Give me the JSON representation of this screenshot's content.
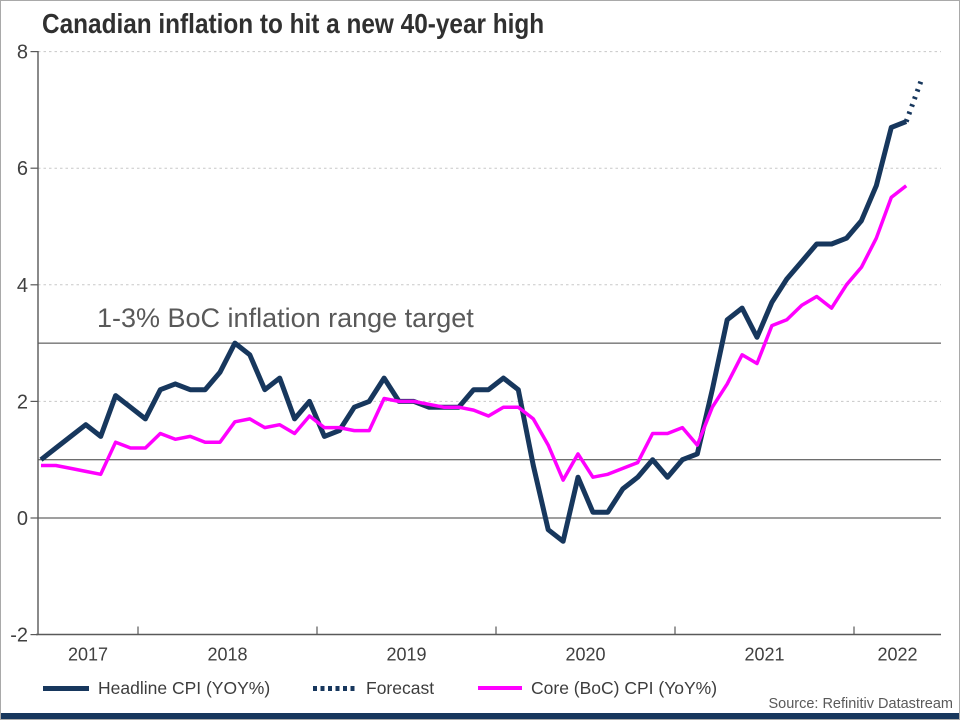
{
  "title": "Canadian inflation to hit a new 40-year high",
  "annotation": "1-3% BoC inflation range target",
  "source": "Source: Refinitiv Datastream",
  "colors": {
    "navy": "#17375d",
    "magenta": "#ff00ff",
    "grid": "#c8c8c8",
    "reference_line": "#3f3f3f",
    "axis": "#595959",
    "tick_label": "#404040",
    "footer_bar": "#17375d"
  },
  "legend": [
    {
      "label": "Headline CPI (YOY%)",
      "style": "solid",
      "color": "#17375d"
    },
    {
      "label": "Forecast",
      "style": "dotted",
      "color": "#17375d"
    },
    {
      "label": "Core (BoC) CPI (YoY%)",
      "style": "solid",
      "color": "#ff00ff"
    }
  ],
  "chart_data": {
    "type": "line",
    "title": "Canadian inflation to hit a new 40-year high",
    "xlabel": "",
    "ylabel": "",
    "x_frequency": "monthly",
    "x_tick_labels": [
      "2017",
      "2018",
      "2019",
      "2020",
      "2021",
      "2022"
    ],
    "y_ticks": [
      8,
      6,
      4,
      2,
      0,
      -2
    ],
    "ylim": [
      -2,
      8
    ],
    "grid_dashed_at": [
      2,
      4,
      6,
      8
    ],
    "reference_lines": [
      0,
      1,
      3
    ],
    "legend_position": "bottom",
    "annotation": "1-3% BoC inflation range target",
    "series": [
      {
        "name": "Headline CPI (YOY%)",
        "color": "#17375d",
        "style": "solid",
        "width": 5,
        "start": "2017-06",
        "values": [
          1.0,
          1.2,
          1.4,
          1.6,
          1.4,
          2.1,
          1.9,
          1.7,
          2.2,
          2.3,
          2.2,
          2.2,
          2.5,
          3.0,
          2.8,
          2.2,
          2.4,
          1.7,
          2.0,
          1.4,
          1.5,
          1.9,
          2.0,
          2.4,
          2.0,
          2.0,
          1.9,
          1.9,
          1.9,
          2.2,
          2.2,
          2.4,
          2.2,
          0.9,
          -0.2,
          -0.4,
          0.7,
          0.1,
          0.1,
          0.5,
          0.7,
          1.0,
          0.7,
          1.0,
          1.1,
          2.2,
          3.4,
          3.6,
          3.1,
          3.7,
          4.1,
          4.4,
          4.7,
          4.7,
          4.8,
          5.1,
          5.7,
          6.7,
          6.8
        ]
      },
      {
        "name": "Forecast",
        "color": "#17375d",
        "style": "dotted",
        "width": 5,
        "start": "2022-04",
        "values": [
          6.8,
          7.5
        ]
      },
      {
        "name": "Core (BoC) CPI (YoY%)",
        "color": "#ff00ff",
        "style": "solid",
        "width": 3.5,
        "start": "2017-06",
        "values": [
          0.9,
          0.9,
          0.85,
          0.8,
          0.75,
          1.3,
          1.2,
          1.2,
          1.45,
          1.35,
          1.4,
          1.3,
          1.3,
          1.65,
          1.7,
          1.55,
          1.6,
          1.45,
          1.75,
          1.55,
          1.55,
          1.5,
          1.5,
          2.05,
          2.0,
          2.0,
          1.95,
          1.9,
          1.9,
          1.85,
          1.75,
          1.9,
          1.9,
          1.7,
          1.25,
          0.65,
          1.1,
          0.7,
          0.75,
          0.85,
          0.95,
          1.45,
          1.45,
          1.55,
          1.25,
          1.9,
          2.3,
          2.8,
          2.65,
          3.3,
          3.4,
          3.65,
          3.8,
          3.6,
          4.0,
          4.3,
          4.8,
          5.5,
          5.7
        ]
      }
    ]
  }
}
